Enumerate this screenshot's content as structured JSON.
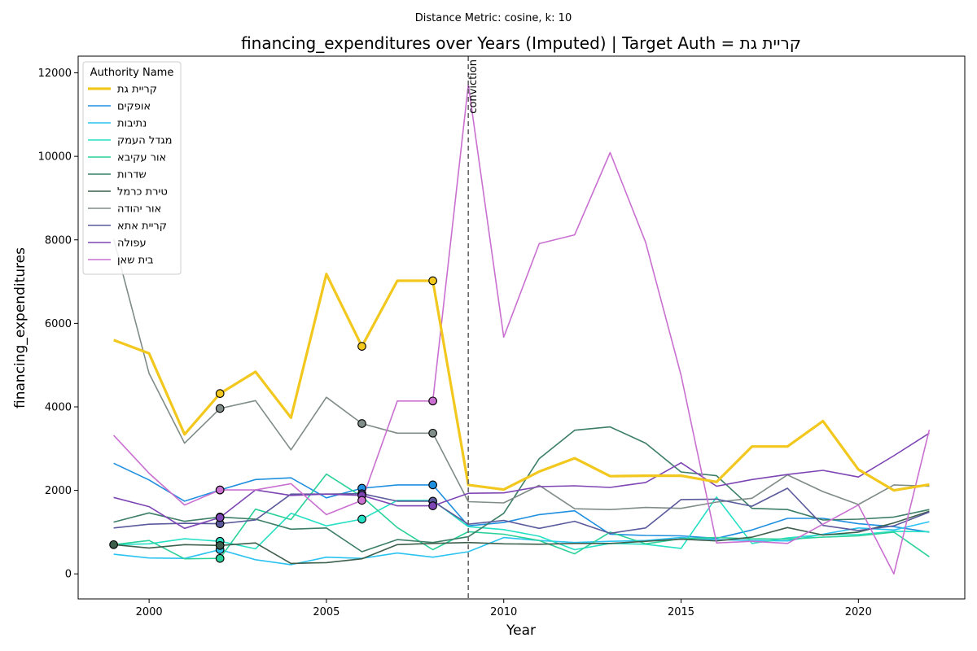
{
  "suptitle": "Distance Metric: cosine, k: 10",
  "chart_data": {
    "type": "line",
    "title": "financing_expenditures over Years (Imputed) | Target Auth = קריית גת",
    "xlabel": "Year",
    "ylabel": "financing_expenditures",
    "xlim": [
      1998.0,
      2023.0
    ],
    "ylim": [
      -600,
      12400
    ],
    "xticks": [
      2000,
      2005,
      2010,
      2015,
      2020
    ],
    "yticks": [
      0,
      2000,
      4000,
      6000,
      8000,
      10000,
      12000
    ],
    "grid": false,
    "legend": {
      "title": "Authority Name",
      "placement": "top-left"
    },
    "annotation": {
      "x": 2009,
      "label": "conviction",
      "style": "dashed-vertical"
    },
    "years": [
      1999,
      2000,
      2001,
      2002,
      2003,
      2004,
      2005,
      2006,
      2007,
      2008,
      2009,
      2010,
      2011,
      2012,
      2013,
      2014,
      2015,
      2016,
      2017,
      2018,
      2019,
      2020,
      2021,
      2022
    ],
    "series": [
      {
        "name": "קריית גת",
        "color": "#f2c81e",
        "width": 3.2,
        "target": true,
        "values": [
          5600,
          5280,
          3340,
          4320,
          4840,
          3740,
          7180,
          5450,
          7020,
          7020,
          2130,
          2020,
          2450,
          2770,
          2340,
          2350,
          2350,
          2200,
          3050,
          3050,
          3660,
          2500,
          2000,
          2140
        ],
        "imputed_years": [
          2002,
          2006,
          2008
        ]
      },
      {
        "name": "אופקים",
        "color": "#1f8fe0",
        "width": 1.6,
        "values": [
          2650,
          2250,
          1740,
          2010,
          2260,
          2300,
          1820,
          2050,
          2130,
          2130,
          1150,
          1230,
          1420,
          1510,
          950,
          920,
          910,
          850,
          1050,
          1330,
          1330,
          1200,
          1130,
          1000
        ],
        "imputed_years": [
          2002,
          2006,
          2008
        ]
      },
      {
        "name": "נתיבות",
        "color": "#2bc3f0",
        "width": 1.6,
        "values": [
          470,
          380,
          370,
          580,
          340,
          220,
          400,
          370,
          500,
          400,
          530,
          870,
          800,
          750,
          780,
          800,
          870,
          820,
          800,
          790,
          950,
          1100,
          1050,
          1250
        ],
        "imputed_years": [
          2002
        ]
      },
      {
        "name": "מגדל העמק",
        "color": "#25e0c4",
        "width": 1.6,
        "values": [
          700,
          720,
          840,
          780,
          600,
          1450,
          1150,
          1310,
          1760,
          1760,
          1130,
          1060,
          900,
          580,
          730,
          710,
          610,
          1840,
          730,
          860,
          940,
          940,
          1020,
          1010
        ],
        "imputed_years": [
          2002,
          2006
        ]
      },
      {
        "name": "אור עקיבא",
        "color": "#2ad19a",
        "width": 1.6,
        "values": [
          700,
          800,
          360,
          370,
          1550,
          1300,
          2390,
          1850,
          1110,
          580,
          1010,
          950,
          800,
          480,
          1000,
          720,
          840,
          870,
          840,
          830,
          880,
          910,
          1000,
          410
        ],
        "imputed_years": [
          2002
        ]
      },
      {
        "name": "שדרות",
        "color": "#3c7e66",
        "width": 1.6,
        "values": [
          1240,
          1460,
          1260,
          1360,
          1310,
          1070,
          1100,
          530,
          820,
          750,
          890,
          1450,
          2760,
          3440,
          3520,
          3130,
          2440,
          2350,
          1570,
          1540,
          1290,
          1310,
          1360,
          1540
        ],
        "imputed_years": [
          2002
        ]
      },
      {
        "name": "טירת כרמל",
        "color": "#3e5f4c",
        "width": 1.6,
        "values": [
          700,
          620,
          700,
          680,
          740,
          250,
          270,
          360,
          700,
          730,
          750,
          720,
          710,
          730,
          730,
          780,
          830,
          790,
          880,
          1110,
          930,
          1000,
          1220,
          1500
        ],
        "imputed_years": [
          1999,
          2002
        ]
      },
      {
        "name": "אור יהודה",
        "color": "#7f8c88",
        "width": 1.6,
        "values": [
          8020,
          4800,
          3130,
          3960,
          4150,
          2970,
          4230,
          3600,
          3370,
          3370,
          1730,
          1700,
          2120,
          1560,
          1540,
          1590,
          1570,
          1720,
          1810,
          2370,
          1970,
          1660,
          2130,
          2100
        ],
        "imputed_years": [
          2002,
          2006,
          2008
        ]
      },
      {
        "name": "קריית אתא",
        "color": "#5a5a9c",
        "width": 1.6,
        "values": [
          1100,
          1190,
          1210,
          1200,
          1290,
          1910,
          1910,
          1920,
          1740,
          1740,
          1190,
          1280,
          1090,
          1260,
          970,
          1100,
          1780,
          1790,
          1620,
          2050,
          1160,
          1040,
          1150,
          1480
        ],
        "imputed_years": [
          2002,
          2006,
          2008
        ]
      },
      {
        "name": "עפולה",
        "color": "#7e46b4",
        "width": 1.6,
        "values": [
          1830,
          1610,
          1090,
          1350,
          2010,
          1880,
          1910,
          1880,
          1630,
          1630,
          1930,
          1940,
          2090,
          2110,
          2070,
          2190,
          2660,
          2100,
          2260,
          2380,
          2480,
          2320,
          2830,
          3370
        ],
        "imputed_years": [
          2002,
          2006,
          2008
        ]
      },
      {
        "name": "בית שאן",
        "color": "#c970d0",
        "width": 1.6,
        "values": [
          3320,
          2410,
          1650,
          2010,
          2010,
          2160,
          1420,
          1760,
          4140,
          4140,
          11720,
          5670,
          7910,
          8120,
          10090,
          7940,
          4760,
          740,
          780,
          730,
          1190,
          1650,
          0,
          3450
        ],
        "imputed_years": [
          2002,
          2006,
          2008
        ]
      }
    ]
  }
}
